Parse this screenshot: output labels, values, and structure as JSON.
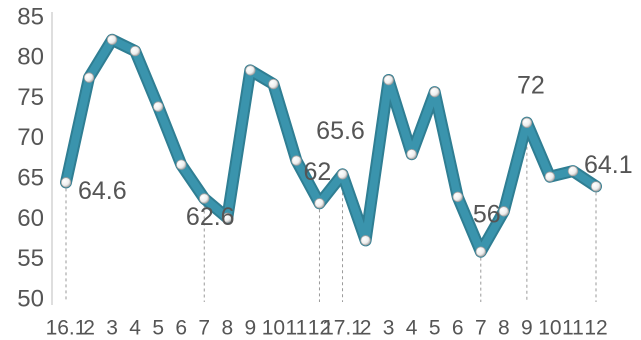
{
  "chart_data": {
    "type": "line",
    "title": "",
    "xlabel": "",
    "ylabel": "",
    "ylim": [
      50,
      85
    ],
    "yticks": [
      50,
      55,
      60,
      65,
      70,
      75,
      80,
      85
    ],
    "grid": false,
    "categories": [
      "16.1",
      "2",
      "3",
      "4",
      "5",
      "6",
      "7",
      "8",
      "9",
      "10",
      "11",
      "12",
      "17.1",
      "2",
      "3",
      "4",
      "5",
      "6",
      "7",
      "8",
      "9",
      "10",
      "11",
      "12"
    ],
    "x_tick_labels": [
      "16.1",
      "2",
      "3",
      "4",
      "5",
      "6",
      "7",
      "8",
      "9",
      "10",
      "11",
      "12",
      "17.1",
      "2",
      "3",
      "4",
      "5",
      "6",
      "7",
      "8",
      "9",
      "10",
      "11",
      "12"
    ],
    "series": [
      {
        "values": [
          64.6,
          77.6,
          82.3,
          80.9,
          74.0,
          66.8,
          62.6,
          60.2,
          78.5,
          76.8,
          67.3,
          62.0,
          65.6,
          57.4,
          77.3,
          68.1,
          75.8,
          62.8,
          56.0,
          61.0,
          72.0,
          65.3,
          66.0,
          64.1
        ],
        "color": "#3a94ad"
      }
    ],
    "annotations": [
      {
        "index": 0,
        "text": "64.6",
        "pos": "below-right"
      },
      {
        "index": 6,
        "text": "62.6",
        "pos": "below"
      },
      {
        "index": 11,
        "text": "62",
        "pos": "above-right"
      },
      {
        "index": 12,
        "text": "65.6",
        "pos": "above-left"
      },
      {
        "index": 18,
        "text": "56",
        "pos": "above"
      },
      {
        "index": 20,
        "text": "72",
        "pos": "above"
      },
      {
        "index": 23,
        "text": "64.1",
        "pos": "above-right"
      }
    ],
    "marker_lines_at": [
      0,
      6,
      11,
      12,
      18,
      20,
      23
    ]
  }
}
